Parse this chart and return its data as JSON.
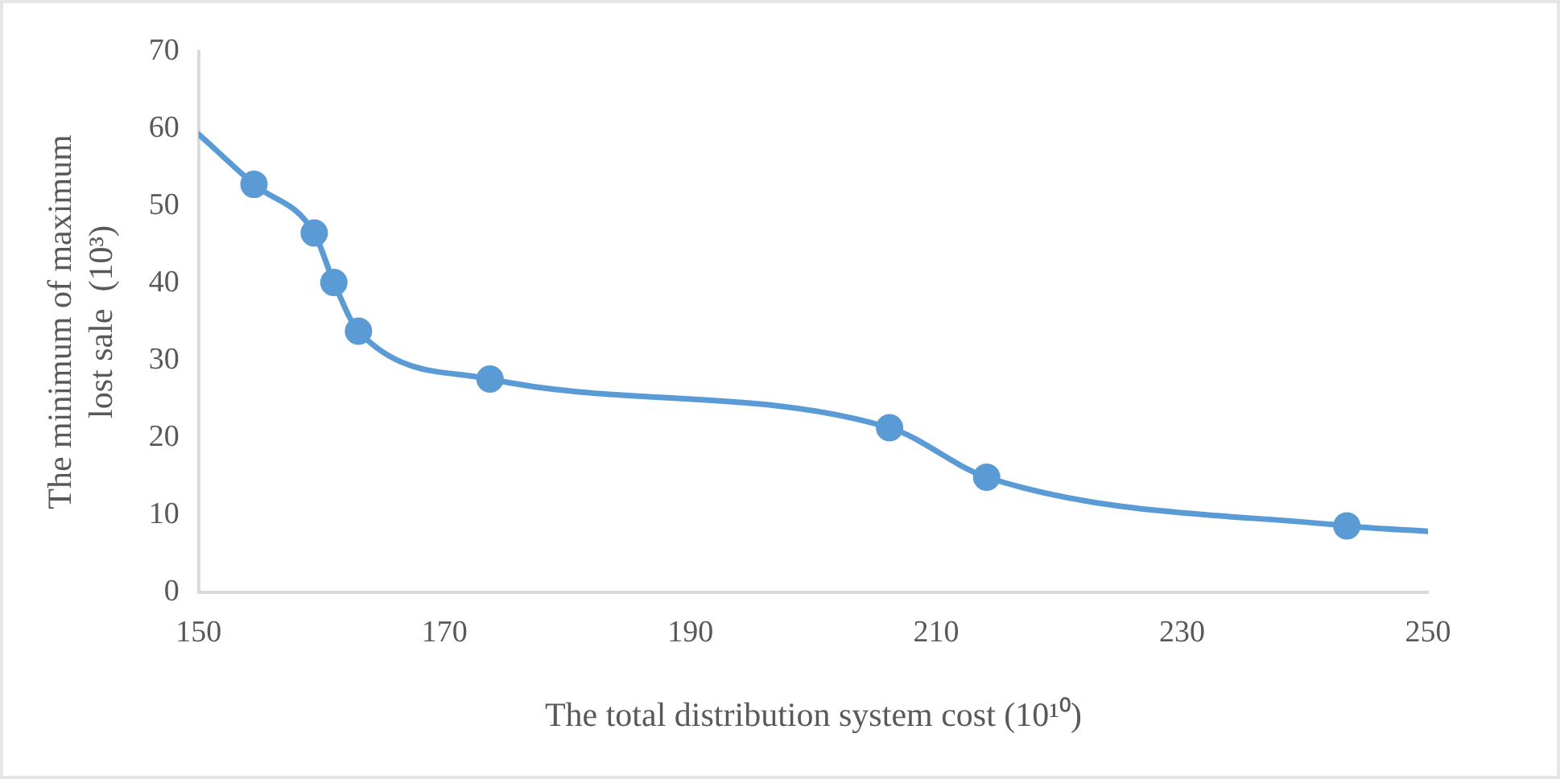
{
  "chart_data": {
    "type": "line",
    "xlabel": "The total distribution system cost (10¹⁰)",
    "ylabel": "The minimum of maximum\nlost sale  (10³)",
    "series": [
      {
        "type": "line",
        "marker": "none",
        "color": "#5b9bd5",
        "x": [
          150,
          154.5,
          159.4,
          161.0,
          163.0,
          173.7,
          206.2,
          214.1,
          243.4,
          250
        ],
        "values": [
          59.3,
          52.8,
          46.5,
          40.1,
          33.8,
          27.6,
          21.3,
          14.9,
          8.6,
          7.9
        ]
      },
      {
        "type": "scatter",
        "marker": "circle",
        "color": "#5b9bd5",
        "x": [
          154.5,
          159.4,
          161.0,
          163.0,
          173.7,
          206.2,
          214.1,
          243.4
        ],
        "values": [
          52.8,
          46.5,
          40.1,
          33.8,
          27.6,
          21.3,
          14.9,
          8.6
        ]
      }
    ],
    "xlim": [
      150,
      250
    ],
    "xticks": [
      150,
      170,
      190,
      210,
      230,
      250
    ],
    "ylim": [
      0,
      70
    ],
    "yticks": [
      0,
      10,
      20,
      30,
      40,
      50,
      60,
      70
    ],
    "grid": false,
    "legend": false
  }
}
